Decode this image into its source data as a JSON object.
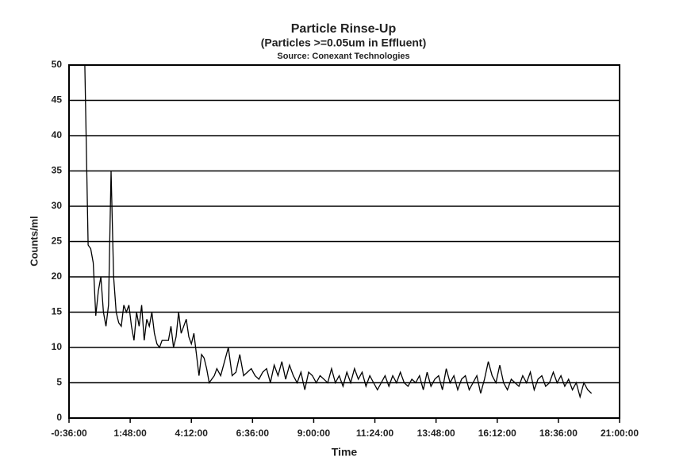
{
  "chart_data": {
    "type": "line",
    "title": "Particle Rinse-Up",
    "subtitle": "(Particles >=0.05um in Effluent)",
    "source": "Source: Conexant Technologies",
    "x_label": "Time",
    "y_label": "Counts/ml",
    "xlim": [
      -0.6,
      21
    ],
    "ylim": [
      0,
      50
    ],
    "xticks": [
      {
        "value": -0.6,
        "label": "-0:36:00"
      },
      {
        "value": 1.8,
        "label": "1:48:00"
      },
      {
        "value": 4.2,
        "label": "4:12:00"
      },
      {
        "value": 6.6,
        "label": "6:36:00"
      },
      {
        "value": 9,
        "label": "9:00:00"
      },
      {
        "value": 11.4,
        "label": "11:24:00"
      },
      {
        "value": 13.8,
        "label": "13:48:00"
      },
      {
        "value": 16.2,
        "label": "16:12:00"
      },
      {
        "value": 18.6,
        "label": "18:36:00"
      },
      {
        "value": 21,
        "label": "21:00:00"
      }
    ],
    "yticks": [
      0,
      5,
      10,
      15,
      20,
      25,
      30,
      35,
      40,
      45,
      50
    ],
    "grid": true,
    "series": [
      {
        "color": "#000000",
        "x": [
          0.02,
          0.15,
          0.25,
          0.35,
          0.45,
          0.55,
          0.65,
          0.75,
          0.85,
          0.95,
          1.05,
          1.15,
          1.25,
          1.35,
          1.45,
          1.55,
          1.65,
          1.75,
          1.85,
          1.95,
          2.05,
          2.15,
          2.25,
          2.35,
          2.45,
          2.55,
          2.65,
          2.75,
          2.85,
          2.95,
          3.05,
          3.15,
          3.3,
          3.4,
          3.5,
          3.6,
          3.7,
          3.8,
          3.9,
          4.0,
          4.1,
          4.2,
          4.3,
          4.4,
          4.5,
          4.6,
          4.7,
          4.8,
          4.9,
          5.0,
          5.1,
          5.2,
          5.35,
          5.5,
          5.65,
          5.8,
          5.95,
          6.1,
          6.25,
          6.4,
          6.55,
          6.7,
          6.85,
          7.0,
          7.15,
          7.3,
          7.45,
          7.6,
          7.75,
          7.9,
          8.05,
          8.2,
          8.35,
          8.5,
          8.65,
          8.8,
          8.95,
          9.1,
          9.25,
          9.4,
          9.55,
          9.7,
          9.85,
          10.0,
          10.15,
          10.3,
          10.45,
          10.6,
          10.75,
          10.9,
          11.05,
          11.2,
          11.35,
          11.5,
          11.65,
          11.8,
          11.95,
          12.1,
          12.25,
          12.4,
          12.55,
          12.7,
          12.85,
          13.0,
          13.15,
          13.3,
          13.45,
          13.6,
          13.75,
          13.9,
          14.05,
          14.2,
          14.35,
          14.5,
          14.65,
          14.8,
          14.95,
          15.1,
          15.25,
          15.4,
          15.55,
          15.7,
          15.85,
          16.0,
          16.15,
          16.3,
          16.45,
          16.6,
          16.75,
          16.9,
          17.05,
          17.2,
          17.35,
          17.5,
          17.65,
          17.8,
          17.95,
          18.1,
          18.25,
          18.4,
          18.55,
          18.7,
          18.85,
          19.0,
          19.15,
          19.3,
          19.45,
          19.6,
          19.75,
          19.9
        ],
        "values": [
          50,
          24.5,
          24,
          22,
          14.5,
          18,
          20,
          15,
          13,
          16,
          35,
          20,
          15,
          13.5,
          13,
          16,
          15,
          16,
          13,
          11,
          15,
          13,
          16,
          11,
          14,
          13,
          15,
          12,
          10.5,
          10,
          11,
          11,
          11,
          13,
          10,
          11.5,
          15,
          12,
          13,
          14,
          11.5,
          10.5,
          12,
          9,
          6,
          9,
          8.5,
          7,
          5,
          5.5,
          6,
          7,
          6,
          8,
          10,
          6,
          6.5,
          9,
          6,
          6.5,
          7,
          6,
          5.5,
          6.5,
          7,
          5,
          7.5,
          6,
          8,
          5.5,
          7.5,
          6,
          5,
          6.5,
          4,
          6.5,
          6,
          5,
          6,
          5.5,
          5,
          7,
          5,
          6,
          4.5,
          6.5,
          5,
          7,
          5.5,
          6.5,
          4.5,
          6,
          5,
          4,
          5,
          6,
          4.5,
          6,
          5,
          6.5,
          5,
          4.5,
          5.5,
          5,
          6,
          4,
          6.5,
          4.5,
          5.5,
          6,
          4,
          7,
          5,
          6,
          4,
          5.5,
          6,
          4,
          5,
          6,
          3.5,
          5.5,
          8,
          6,
          5,
          7.5,
          5,
          4,
          5.5,
          5,
          4.5,
          6,
          5,
          6.5,
          4,
          5.5,
          6,
          4.5,
          5,
          6.5,
          5,
          6,
          4.5,
          5.5,
          4,
          5,
          3,
          5,
          4,
          3.5
        ]
      }
    ]
  }
}
